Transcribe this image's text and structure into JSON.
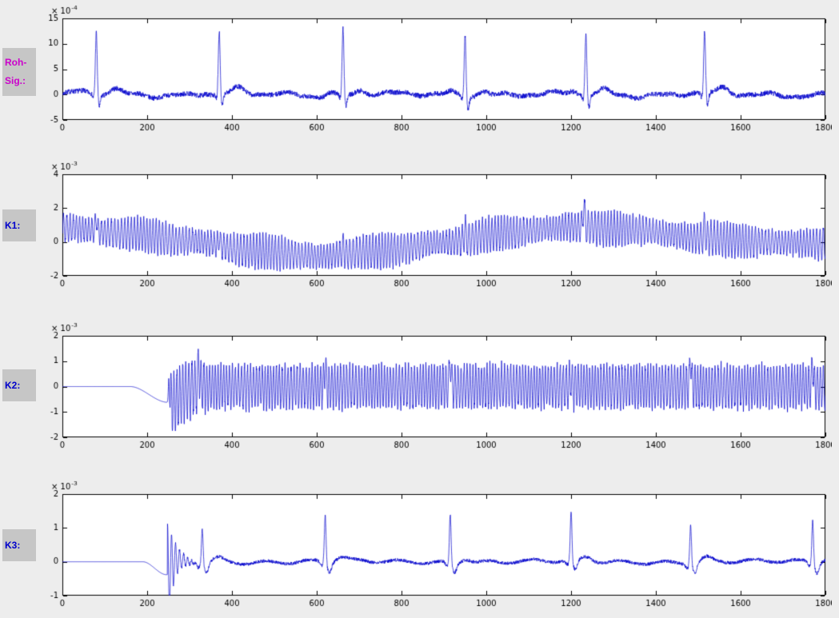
{
  "figure": {
    "background": "#ededed",
    "axes_background": "#ffffff",
    "axis_color": "#000000",
    "label_box_color": "#c6c6c6"
  },
  "side_labels": [
    {
      "line1": "Roh-",
      "line2": "Sig.:",
      "color": "#cc00cc"
    },
    {
      "line1": "K1:",
      "color": "#0000cc"
    },
    {
      "line1": "K2:",
      "color": "#0000cc"
    },
    {
      "line1": "K3:",
      "color": "#0000cc"
    }
  ],
  "chart_data": [
    {
      "name": "Roh-Sig",
      "type": "line",
      "line_color": "#0000cc",
      "xlim": [
        0,
        1800
      ],
      "xticks": [
        0,
        200,
        400,
        600,
        800,
        1000,
        1200,
        1400,
        1600,
        1800
      ],
      "ylim": [
        -5,
        15
      ],
      "yticks": [
        -5,
        0,
        5,
        10,
        15
      ],
      "exponent": -4,
      "signal": {
        "kind": "ecg_raw",
        "seed": 7,
        "noise": 0.5,
        "r_peaks": [
          [
            80,
            12.2
          ],
          [
            370,
            12.6
          ],
          [
            662,
            13.0
          ],
          [
            950,
            12.0
          ],
          [
            1235,
            12.3
          ],
          [
            1515,
            12.1
          ]
        ]
      }
    },
    {
      "name": "K1",
      "type": "line",
      "line_color": "#0000cc",
      "xlim": [
        0,
        1800
      ],
      "xticks": [
        0,
        200,
        400,
        600,
        800,
        1000,
        1200,
        1400,
        1600,
        1800
      ],
      "ylim": [
        -2,
        4
      ],
      "yticks": [
        -2,
        0,
        2,
        4
      ],
      "exponent": -3,
      "signal": {
        "kind": "osc_wander",
        "seed": 11,
        "period": 7.6,
        "osc_amp": 0.85,
        "noise": 0.12,
        "baseline": [
          [
            0,
            0.85
          ],
          [
            150,
            0.5
          ],
          [
            300,
            0.05
          ],
          [
            450,
            -0.55
          ],
          [
            600,
            -0.85
          ],
          [
            750,
            -0.55
          ],
          [
            900,
            -0.05
          ],
          [
            1050,
            0.55
          ],
          [
            1200,
            0.9
          ],
          [
            1350,
            0.7
          ],
          [
            1500,
            0.25
          ],
          [
            1650,
            0.0
          ],
          [
            1800,
            -0.1
          ]
        ],
        "spikes": [
          [
            80,
            0.85
          ],
          [
            370,
            0.55
          ],
          [
            662,
            0.5
          ],
          [
            950,
            0.65
          ],
          [
            1230,
            1.4
          ],
          [
            1515,
            0.65
          ]
        ]
      }
    },
    {
      "name": "K2",
      "type": "line",
      "line_color": "#0000cc",
      "xlim": [
        0,
        1800
      ],
      "xticks": [
        0,
        200,
        400,
        600,
        800,
        1000,
        1200,
        1400,
        1600,
        1800
      ],
      "ylim": [
        -2,
        2
      ],
      "yticks": [
        -2,
        -1,
        0,
        1,
        2
      ],
      "exponent": -3,
      "signal": {
        "kind": "osc_onset",
        "seed": 23,
        "period": 6.9,
        "onset": 250,
        "pre_dip": [
          -0.62,
          160,
          248
        ],
        "osc_amp": 0.82,
        "start_amp": 1.15,
        "noise": 0.1,
        "spikes": [
          [
            252,
            0.95
          ],
          [
            322,
            1.0
          ],
          [
            620,
            0.95
          ],
          [
            915,
            1.2
          ],
          [
            1200,
            0.45
          ],
          [
            1482,
            1.25
          ],
          [
            1770,
            1.1
          ]
        ]
      }
    },
    {
      "name": "K3",
      "type": "line",
      "line_color": "#0000cc",
      "xlim": [
        0,
        1800
      ],
      "xticks": [
        0,
        200,
        400,
        600,
        800,
        1000,
        1200,
        1400,
        1600,
        1800
      ],
      "ylim": [
        -1,
        2
      ],
      "yticks": [
        -1,
        0,
        1,
        2
      ],
      "exponent": -3,
      "signal": {
        "kind": "ecg_onset",
        "seed": 31,
        "onset": 248,
        "pre_dip": [
          -0.38,
          190,
          245
        ],
        "ring_amp": 1.5,
        "ring_period": 9.5,
        "ring_decay": 18,
        "noise": 0.05,
        "r_peaks": [
          [
            330,
            1.05
          ],
          [
            620,
            1.42
          ],
          [
            915,
            1.45
          ],
          [
            1200,
            1.48
          ],
          [
            1482,
            1.2
          ],
          [
            1770,
            1.28
          ]
        ]
      }
    }
  ]
}
